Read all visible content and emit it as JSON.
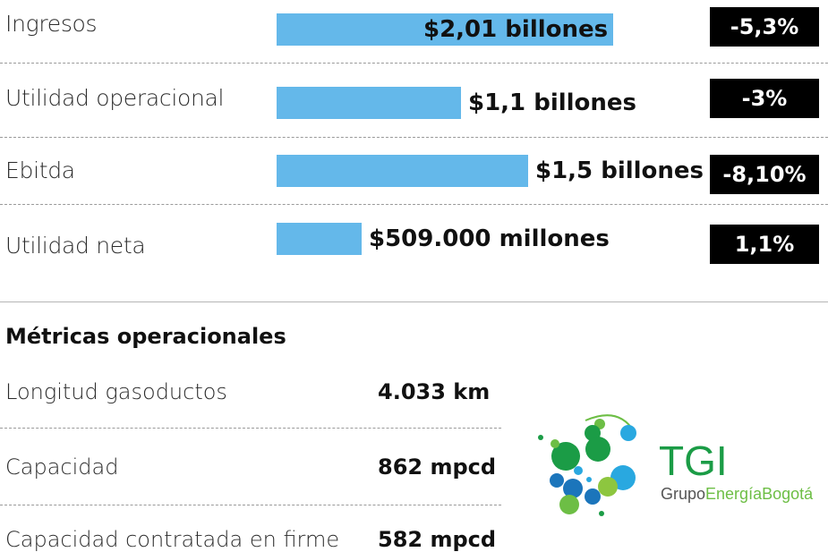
{
  "chart_data": {
    "type": "bar",
    "orientation": "horizontal",
    "categories": [
      "Ingresos",
      "Utilidad operacional",
      "Ebitda",
      "Utilidad neta"
    ],
    "values": [
      2.01,
      1.1,
      1.5,
      0.509
    ],
    "value_unit": "billones",
    "value_labels": [
      "$2,01 billones",
      "$1,1 billones",
      "$1,5 billones",
      "$509.000 millones"
    ],
    "changes": [
      "-5,3%",
      "-3%",
      "-8,10%",
      "1,1%"
    ],
    "bar_color": "#64b8ea",
    "change_box_color": "#000000"
  },
  "metrics": {
    "title": "Métricas operacionales",
    "items": [
      {
        "label": "Longitud gasoductos",
        "value": "4.033 km"
      },
      {
        "label": "Capacidad",
        "value": "862 mpcd"
      },
      {
        "label": "Capacidad contratada en firme",
        "value": "582 mpcd"
      }
    ]
  },
  "logo": {
    "name": "TGI",
    "tagline_part1": "Grupo",
    "tagline_part2": "EnergíaBogotá",
    "icon": "tgi-bubbles-icon",
    "colors": {
      "green": "#6dbe45",
      "blue": "#1b75bb",
      "dark_gray": "#555555"
    }
  }
}
